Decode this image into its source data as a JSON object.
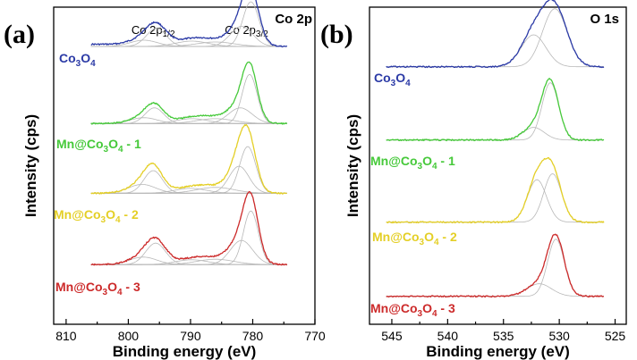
{
  "chart_data": [
    {
      "panel": "(a)",
      "type": "line",
      "header": "Co 2p",
      "peak_labels": [
        {
          "text": "Co 2p",
          "sub": "1/2",
          "x": 796
        },
        {
          "text": "Co 2p",
          "sub": "3/2",
          "x": 781
        }
      ],
      "xlabel": "Binding energy (eV)",
      "ylabel": "Intensity (cps)",
      "xlim": [
        812,
        770
      ],
      "xticks": [
        810,
        800,
        790,
        780,
        770
      ],
      "x_reversed": true,
      "series": [
        {
          "name": "Co3O4",
          "label_main": "Co",
          "label_sub": "3",
          "label_mid": "O",
          "label_sub2": "4",
          "label_suffix": "",
          "color": "#2b3aa6",
          "baseline": 0.2,
          "tail": 0.05,
          "peaks": [
            {
              "center": 780.3,
              "height": 1.0,
              "width": 1.3
            },
            {
              "center": 781.8,
              "height": 0.45,
              "width": 1.8
            },
            {
              "center": 786.0,
              "height": 0.1,
              "width": 3.0
            },
            {
              "center": 789.8,
              "height": 0.12,
              "width": 2.6
            },
            {
              "center": 795.5,
              "height": 0.4,
              "width": 1.6
            },
            {
              "center": 797.5,
              "height": 0.14,
              "width": 2.2
            }
          ]
        },
        {
          "name": "Mn@Co3O4 - 1",
          "label_main": "Mn@Co",
          "label_sub": "3",
          "label_mid": "O",
          "label_sub2": "4",
          "label_suffix": " - 1",
          "color": "#46c93a",
          "baseline": 0.03,
          "tail": 0.0,
          "peaks": [
            {
              "center": 780.5,
              "height": 1.0,
              "width": 1.2
            },
            {
              "center": 782.0,
              "height": 0.32,
              "width": 1.9
            },
            {
              "center": 786.0,
              "height": 0.1,
              "width": 3.0
            },
            {
              "center": 789.8,
              "height": 0.1,
              "width": 2.6
            },
            {
              "center": 795.8,
              "height": 0.32,
              "width": 1.5
            },
            {
              "center": 797.5,
              "height": 0.12,
              "width": 2.2
            }
          ]
        },
        {
          "name": "Mn@Co3O4 - 2",
          "label_main": "Mn@Co",
          "label_sub": "3",
          "label_mid": "O",
          "label_sub2": "4",
          "label_suffix": " - 2",
          "color": "#e4cf26",
          "baseline": 0.03,
          "tail": 0.0,
          "peaks": [
            {
              "center": 780.8,
              "height": 0.95,
              "width": 1.3
            },
            {
              "center": 782.2,
              "height": 0.55,
              "width": 1.6
            },
            {
              "center": 786.0,
              "height": 0.12,
              "width": 3.0
            },
            {
              "center": 790.0,
              "height": 0.1,
              "width": 2.6
            },
            {
              "center": 796.0,
              "height": 0.46,
              "width": 1.5
            },
            {
              "center": 797.8,
              "height": 0.18,
              "width": 2.2
            }
          ]
        },
        {
          "name": "Mn@Co3O4 - 3",
          "label_main": "Mn@Co",
          "label_sub": "3",
          "label_mid": "O",
          "label_sub2": "4",
          "label_suffix": " - 3",
          "color": "#cc2a2a",
          "baseline": 0.03,
          "tail": 0.0,
          "peaks": [
            {
              "center": 780.3,
              "height": 1.0,
              "width": 1.2
            },
            {
              "center": 781.8,
              "height": 0.45,
              "width": 1.8
            },
            {
              "center": 786.0,
              "height": 0.1,
              "width": 3.0
            },
            {
              "center": 789.8,
              "height": 0.09,
              "width": 2.6
            },
            {
              "center": 795.6,
              "height": 0.4,
              "width": 1.6
            },
            {
              "center": 797.6,
              "height": 0.14,
              "width": 2.2
            }
          ]
        }
      ]
    },
    {
      "panel": "(b)",
      "type": "line",
      "header": "O 1s",
      "xlabel": "Binding energy (eV)",
      "ylabel": "Intensity (cps)",
      "xlim": [
        547,
        524
      ],
      "xticks": [
        545,
        540,
        535,
        530,
        525
      ],
      "x_reversed": true,
      "series": [
        {
          "name": "Co3O4",
          "label_main": "Co",
          "label_sub": "3",
          "label_mid": "O",
          "label_sub2": "4",
          "label_suffix": "",
          "color": "#2b3aa6",
          "baseline": 0.05,
          "tail": 0.0,
          "peaks": [
            {
              "center": 530.4,
              "height": 1.0,
              "width": 1.1
            },
            {
              "center": 532.3,
              "height": 0.55,
              "width": 1.1
            }
          ]
        },
        {
          "name": "Mn@Co3O4 - 1",
          "label_main": "Mn@Co",
          "label_sub": "3",
          "label_mid": "O",
          "label_sub2": "4",
          "label_suffix": " - 1",
          "color": "#46c93a",
          "baseline": 0.02,
          "tail": 0.0,
          "peaks": [
            {
              "center": 530.8,
              "height": 1.0,
              "width": 0.75
            },
            {
              "center": 532.3,
              "height": 0.22,
              "width": 0.95
            }
          ]
        },
        {
          "name": "Mn@Co3O4 - 2",
          "label_main": "Mn@Co",
          "label_sub": "3",
          "label_mid": "O",
          "label_sub2": "4",
          "label_suffix": " - 2",
          "color": "#e4cf26",
          "baseline": 0.02,
          "tail": 0.0,
          "peaks": [
            {
              "center": 530.6,
              "height": 0.82,
              "width": 0.8
            },
            {
              "center": 532.0,
              "height": 0.72,
              "width": 0.85
            }
          ]
        },
        {
          "name": "Mn@Co3O4 - 3",
          "label_main": "Mn@Co",
          "label_sub": "3",
          "label_mid": "O",
          "label_sub2": "4",
          "label_suffix": " - 3",
          "color": "#cc2a2a",
          "baseline": 0.02,
          "tail": 0.0,
          "peaks": [
            {
              "center": 530.3,
              "height": 1.0,
              "width": 0.75
            },
            {
              "center": 531.8,
              "height": 0.22,
              "width": 1.1
            }
          ]
        }
      ]
    }
  ]
}
